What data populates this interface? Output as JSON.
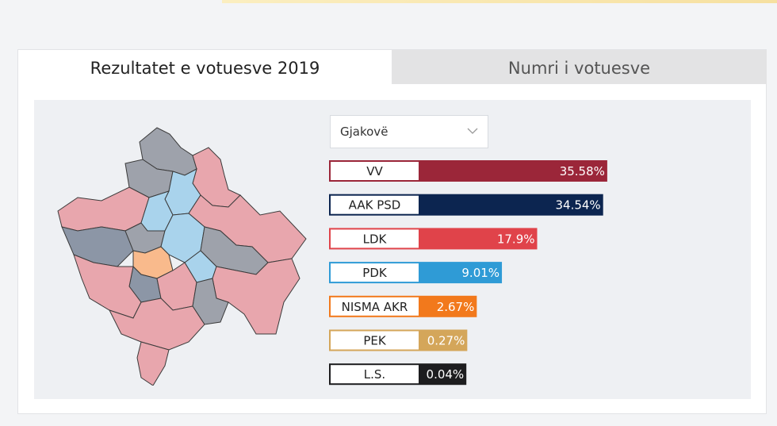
{
  "tabs": [
    "Rezultatet e votuesve 2019",
    "Numri i votuesve"
  ],
  "dropdown": "Gjakovë",
  "chart_data": {
    "type": "bar",
    "categories": [
      "VV",
      "AAK PSD",
      "LDK",
      "PDK",
      "NISMA AKR",
      "PEK",
      "L.S."
    ],
    "values": [
      35.58,
      34.54,
      17.9,
      9.01,
      2.67,
      0.27,
      0.04
    ],
    "value_labels": [
      "35.58%",
      "34.54%",
      "17.9%",
      "9.01%",
      "2.67%",
      "0.27%",
      "0.04%"
    ],
    "colors": [
      "#9b2639",
      "#0c2550",
      "#e0434a",
      "#2f9bd6",
      "#f2791c",
      "#d4a65a",
      "#1d1d1f"
    ]
  }
}
